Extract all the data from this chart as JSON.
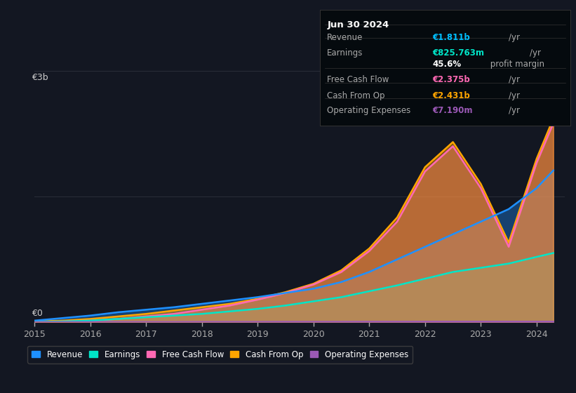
{
  "background_color": "#131722",
  "plot_bg_color": "#131722",
  "grid_color": "#2a2e39",
  "title_box": {
    "date": "Jun 30 2024",
    "rows": [
      {
        "label": "Revenue",
        "value": "€1.811b",
        "unit": "/yr",
        "value_color": "#00bfff"
      },
      {
        "label": "Earnings",
        "value": "€825.763m",
        "unit": "/yr",
        "value_color": "#00e5c8"
      },
      {
        "label": "",
        "value": "45.6%",
        "unit": " profit margin",
        "value_color": "#ffffff"
      },
      {
        "label": "Free Cash Flow",
        "value": "€2.375b",
        "unit": "/yr",
        "value_color": "#ff69b4"
      },
      {
        "label": "Cash From Op",
        "value": "€2.431b",
        "unit": "/yr",
        "value_color": "#ffa500"
      },
      {
        "label": "Operating Expenses",
        "value": "€7.190m",
        "unit": "/yr",
        "value_color": "#9b59b6"
      }
    ]
  },
  "years": [
    2015,
    2015.5,
    2016,
    2016.5,
    2017,
    2017.5,
    2018,
    2018.5,
    2019,
    2019.5,
    2020,
    2020.5,
    2021,
    2021.5,
    2022,
    2022.5,
    2023,
    2023.5,
    2024,
    2024.3
  ],
  "revenue": [
    0.02,
    0.05,
    0.08,
    0.12,
    0.15,
    0.18,
    0.22,
    0.26,
    0.3,
    0.35,
    0.4,
    0.48,
    0.6,
    0.75,
    0.9,
    1.05,
    1.2,
    1.35,
    1.6,
    1.811
  ],
  "earnings": [
    0.005,
    0.01,
    0.02,
    0.04,
    0.06,
    0.08,
    0.1,
    0.13,
    0.16,
    0.2,
    0.25,
    0.3,
    0.37,
    0.44,
    0.52,
    0.6,
    0.65,
    0.7,
    0.78,
    0.826
  ],
  "fcf": [
    0.005,
    0.01,
    0.02,
    0.04,
    0.07,
    0.1,
    0.15,
    0.2,
    0.27,
    0.35,
    0.45,
    0.6,
    0.85,
    1.2,
    1.8,
    2.1,
    1.6,
    0.9,
    1.9,
    2.375
  ],
  "cashfromop": [
    0.01,
    0.02,
    0.04,
    0.07,
    0.1,
    0.14,
    0.18,
    0.22,
    0.28,
    0.36,
    0.46,
    0.62,
    0.88,
    1.25,
    1.85,
    2.15,
    1.65,
    0.95,
    1.95,
    2.431
  ],
  "opex": [
    0.002,
    0.002,
    0.003,
    0.003,
    0.003,
    0.003,
    0.004,
    0.004,
    0.004,
    0.005,
    0.005,
    0.005,
    0.006,
    0.006,
    0.007,
    0.007,
    0.007,
    0.007,
    0.007,
    0.00719
  ],
  "revenue_color": "#1e90ff",
  "earnings_color": "#00e5c8",
  "fcf_color": "#ff69b4",
  "cashfromop_color": "#ffa500",
  "opex_color": "#9b59b6",
  "ylabel_text": "€3b",
  "ylabel_zero": "€0",
  "legend_items": [
    "Revenue",
    "Earnings",
    "Free Cash Flow",
    "Cash From Op",
    "Operating Expenses"
  ],
  "legend_colors": [
    "#1e90ff",
    "#00e5c8",
    "#ff69b4",
    "#ffa500",
    "#9b59b6"
  ],
  "xticks": [
    2015,
    2016,
    2017,
    2018,
    2019,
    2020,
    2021,
    2022,
    2023,
    2024
  ],
  "ylim": [
    0,
    3.0
  ],
  "line_width": 1.8
}
